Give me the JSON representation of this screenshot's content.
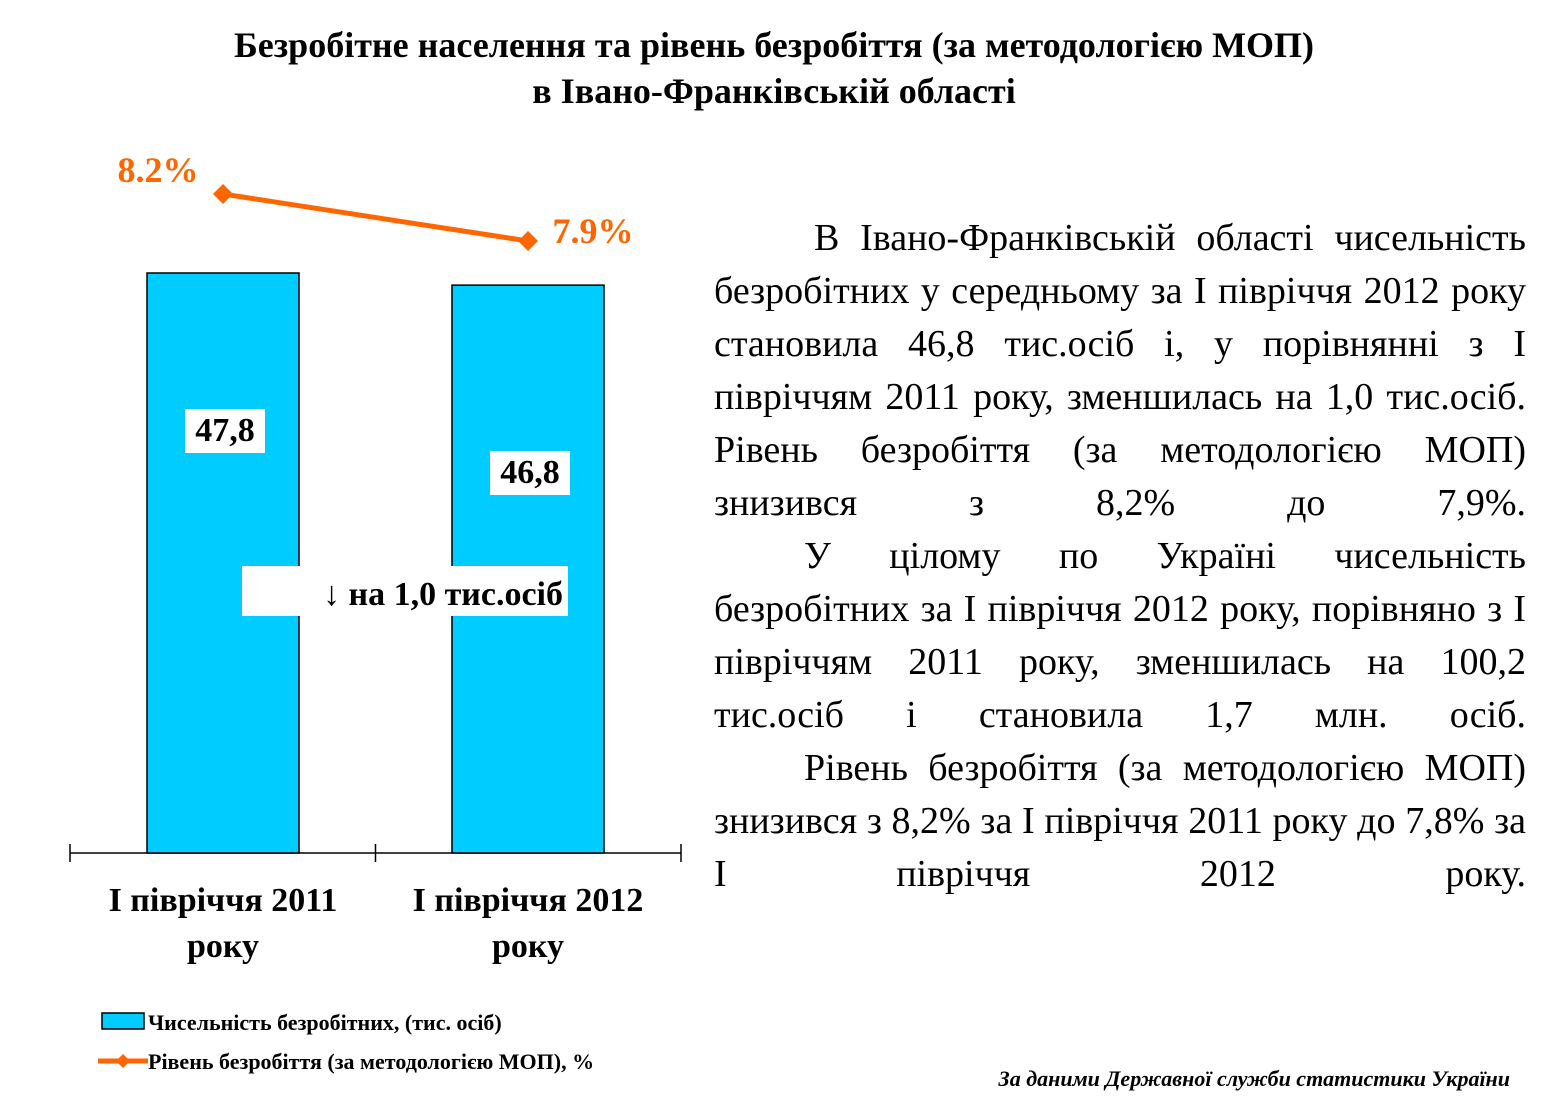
{
  "title": {
    "line1": "Безробітне населення та рівень безробіття (за методологією МОП)",
    "line2": "в Івано-Франківській області"
  },
  "chart_data": {
    "type": "bar+line",
    "categories": [
      "І півріччя 2011 року",
      "І півріччя 2012 року"
    ],
    "category_lines": [
      [
        "І півріччя 2011",
        "року"
      ],
      [
        "І півріччя 2012",
        "року"
      ]
    ],
    "series": [
      {
        "name": "Чисельність безробітних, (тис. осіб)",
        "type": "bar",
        "values": [
          47.8,
          46.8
        ],
        "labels": [
          "47,8",
          "46,8"
        ],
        "color": "#00CCFF"
      },
      {
        "name": "Рівень безробіття (за методологією МОП), %",
        "type": "line",
        "values": [
          8.2,
          7.9
        ],
        "labels": [
          "8.2%",
          "7.9%"
        ],
        "color": "#FF6600"
      }
    ],
    "annotation": "↓ на 1,0 тис.осіб",
    "legend_position": "bottom"
  },
  "body": {
    "p1": "В Івано-Франківській області чисельність безробітних у середньому за І півріччя 2012 року становила 46,8 тис.осіб і, у порівнянні з І півріччям 2011 року, зменшилась на 1,0 тис.осіб. Рівень безробіття (за методологією МОП) знизився з 8,2% до 7,9%.",
    "p2": "У цілому по Україні чисельність безробітних за І півріччя 2012 року, порівняно з І півріччям 2011 року, зменшилась на 100,2 тис.осіб і становила 1,7 млн. осіб.",
    "p3": "Рівень безробіття (за методологією МОП) знизився з 8,2% за І півріччя 2011 року до 7,8% за І півріччя 2012 року."
  },
  "source": "За даними Державної служби статистики України"
}
